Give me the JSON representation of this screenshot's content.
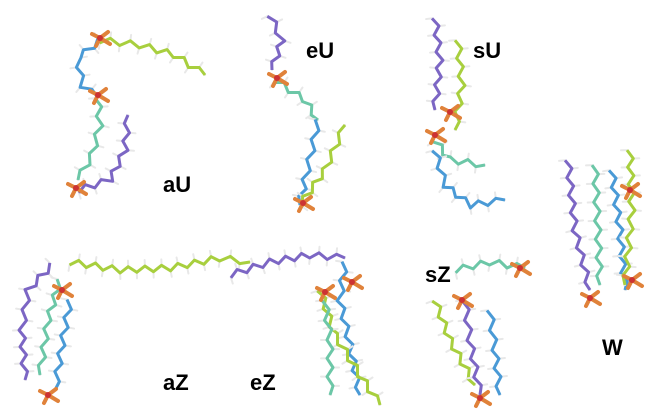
{
  "figure": {
    "panels": [
      {
        "id": "aU",
        "label": "aU"
      },
      {
        "id": "eU",
        "label": "eU"
      },
      {
        "id": "sU",
        "label": "sU"
      },
      {
        "id": "W",
        "label": "W"
      },
      {
        "id": "aZ",
        "label": "aZ"
      },
      {
        "id": "eZ",
        "label": "eZ"
      },
      {
        "id": "sZ",
        "label": "sZ"
      }
    ]
  },
  "palette": {
    "purple": "#7c66c4",
    "blue": "#4a9ad6",
    "teal": "#6cc7a7",
    "lime": "#a8cf3e",
    "orange": "#e0823a",
    "red": "#cc3333",
    "hydrogen": "#e8e8e8",
    "carbon_dark": "#333333"
  }
}
